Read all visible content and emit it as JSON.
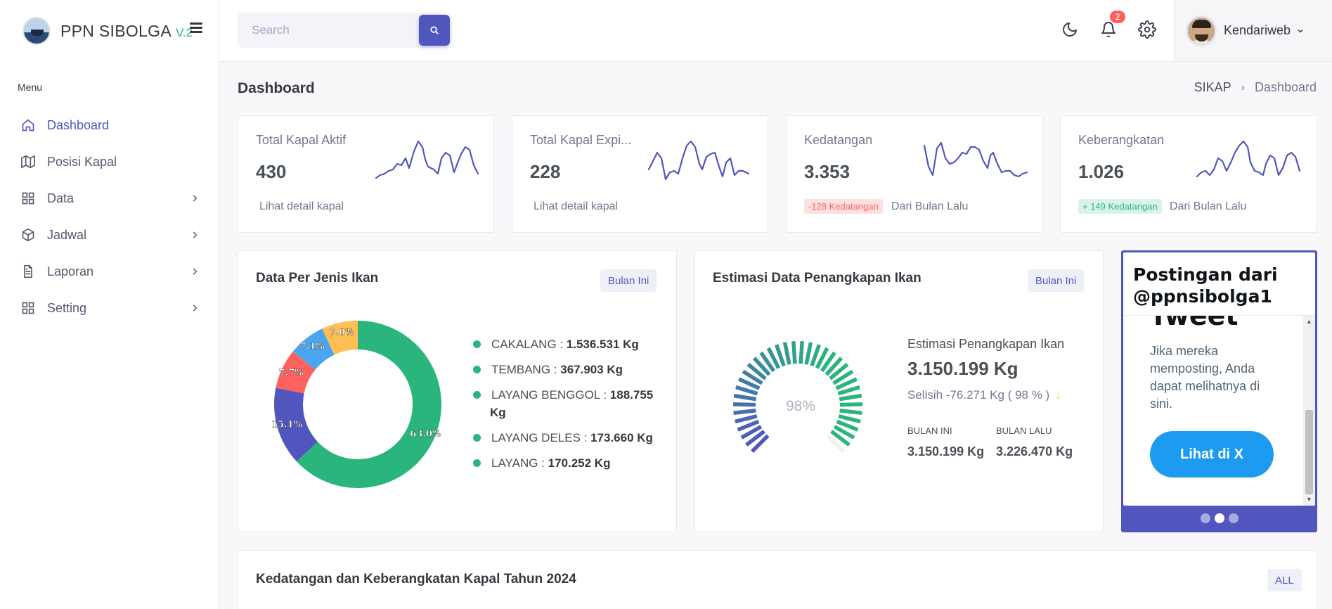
{
  "brand": {
    "name": "PPN SIBOLGA",
    "version": "V.2"
  },
  "sidebar": {
    "menu_title": "Menu",
    "items": [
      {
        "label": "Dashboard",
        "icon": "home-icon",
        "active": true
      },
      {
        "label": "Posisi Kapal",
        "icon": "map-icon"
      },
      {
        "label": "Data",
        "icon": "grid-icon"
      },
      {
        "label": "Jadwal",
        "icon": "box-icon"
      },
      {
        "label": "Laporan",
        "icon": "file-text-icon"
      },
      {
        "label": "Setting",
        "icon": "grid-icon"
      }
    ]
  },
  "topbar": {
    "search_placeholder": "Search",
    "notification_count": "2",
    "user_name": "Kendariweb"
  },
  "page": {
    "title": "Dashboard",
    "breadcrumb": {
      "root": "SIKAP",
      "current": "Dashboard"
    }
  },
  "stats": [
    {
      "label": "Total Kapal Aktif",
      "value": "430",
      "link": "Lihat detail kapal"
    },
    {
      "label": "Total Kapal Expi...",
      "value": "228",
      "link": "Lihat detail kapal"
    },
    {
      "label": "Kedatangan",
      "value": "3.353",
      "badge": "-128 Kedatangan",
      "note": "Dari Bulan Lalu"
    },
    {
      "label": "Keberangkatan",
      "value": "1.026",
      "badge": "+ 149 Kedatangan",
      "note": "Dari Bulan Lalu"
    }
  ],
  "fish_card": {
    "title": "Data Per Jenis Ikan",
    "filter": "Bulan Ini",
    "legend": [
      {
        "name": "CAKALANG",
        "value": "1.536.531 Kg"
      },
      {
        "name": "TEMBANG",
        "value": "367.903 Kg"
      },
      {
        "name": "LAYANG BENGGOL",
        "value": "188.755 Kg"
      },
      {
        "name": "LAYANG DELES",
        "value": "173.660 Kg"
      },
      {
        "name": "LAYANG",
        "value": "170.252 Kg"
      }
    ],
    "separator": " : "
  },
  "chart_data": {
    "type": "pie",
    "labels": [
      "63.0%",
      "15.1%",
      "7.7%",
      "7.1%",
      "7.0%"
    ],
    "values": [
      63.0,
      15.1,
      7.7,
      7.1,
      7.0
    ],
    "colors": [
      "#2ab57d",
      "#5156be",
      "#fd625e",
      "#4ba6ef",
      "#ffbf53"
    ]
  },
  "estimation_card": {
    "title": "Estimasi Data Penangkapan Ikan",
    "filter": "Bulan Ini",
    "gauge_percent_label": "98%",
    "gauge_value": 0.98,
    "label": "Estimasi Penangkapan Ikan",
    "value": "3.150.199 Kg",
    "diff": "Selisih -76.271 Kg ( 98 % )",
    "this_month_label": "BULAN INI",
    "this_month_value": "3.150.199 Kg",
    "last_month_label": "BULAN LALU",
    "last_month_value": "3.226.470 Kg"
  },
  "twitter": {
    "header": "Postingan dari @ppnsibolga1",
    "big_text": "Tweet",
    "body": "Jika mereka memposting, Anda dapat melihatnya di sini.",
    "button": "Lihat di X"
  },
  "bottom_card": {
    "title": "Kedatangan dan Keberangkatan Kapal Tahun 2024",
    "filter": "ALL"
  },
  "colors": {
    "primary": "#5156be",
    "success": "#2ab57d",
    "danger": "#fd625e",
    "info": "#4ba6ef",
    "warning": "#ffbf53",
    "twitter": "#1d9bf0"
  }
}
